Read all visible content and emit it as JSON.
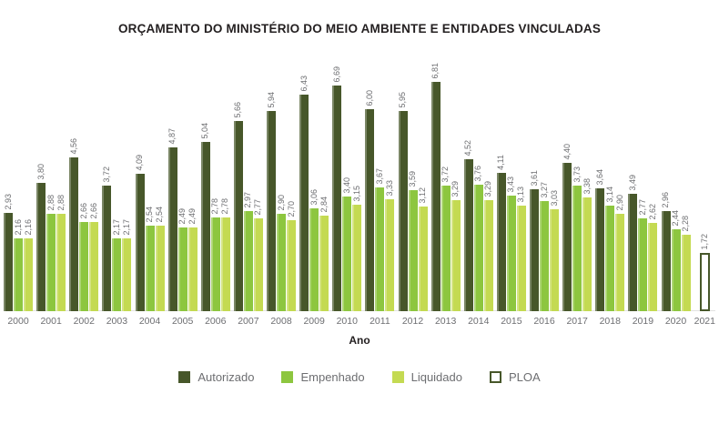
{
  "title": "ORÇAMENTO DO MINISTÉRIO DO MEIO AMBIENTE E ENTIDADES VINCULADAS",
  "chart_data": {
    "type": "bar",
    "title": "ORÇAMENTO DO MINISTÉRIO DO MEIO AMBIENTE E ENTIDADES VINCULADAS",
    "xlabel": "Ano",
    "ylabel": "",
    "ylim": [
      0,
      7
    ],
    "grid": false,
    "legend_position": "bottom",
    "value_label_style": "rotated-vertical, comma-decimal, 2 decimals",
    "categories": [
      "2000",
      "2001",
      "2002",
      "2003",
      "2004",
      "2005",
      "2006",
      "2007",
      "2008",
      "2009",
      "2010",
      "2011",
      "2012",
      "2013",
      "2014",
      "2015",
      "2016",
      "2017",
      "2018",
      "2019",
      "2020",
      "2021"
    ],
    "series": [
      {
        "name": "Autorizado",
        "color": "#47572a",
        "values": [
          2.93,
          3.8,
          4.56,
          3.72,
          4.09,
          4.87,
          5.04,
          5.66,
          5.94,
          6.43,
          6.69,
          6.0,
          5.95,
          6.81,
          4.52,
          4.11,
          3.61,
          4.4,
          3.64,
          3.49,
          2.96,
          null
        ]
      },
      {
        "name": "Empenhado",
        "color": "#8dc63f",
        "values": [
          2.16,
          2.88,
          2.66,
          2.17,
          2.54,
          2.49,
          2.78,
          2.97,
          2.9,
          3.06,
          3.4,
          3.67,
          3.59,
          3.72,
          3.76,
          3.43,
          3.27,
          3.73,
          3.14,
          2.77,
          2.44,
          null
        ]
      },
      {
        "name": "Liquidado",
        "color": "#c4da52",
        "values": [
          2.16,
          2.88,
          2.66,
          2.17,
          2.54,
          2.49,
          2.78,
          2.77,
          2.7,
          2.84,
          3.15,
          3.33,
          3.12,
          3.29,
          3.29,
          3.13,
          3.03,
          3.38,
          2.9,
          2.62,
          2.28,
          null
        ]
      },
      {
        "name": "PLOA",
        "color": "#ffffff",
        "border_color": "#47572a",
        "values": [
          null,
          null,
          null,
          null,
          null,
          null,
          null,
          null,
          null,
          null,
          null,
          null,
          null,
          null,
          null,
          null,
          null,
          null,
          null,
          null,
          null,
          1.72
        ]
      }
    ]
  },
  "legend": {
    "items": [
      {
        "label": "Autorizado"
      },
      {
        "label": "Empenhado"
      },
      {
        "label": "Liquidado"
      },
      {
        "label": "PLOA"
      }
    ]
  },
  "colors": {
    "autorizado": "#47572a",
    "empenhado": "#8dc63f",
    "liquidado": "#c4da52",
    "ploa_fill": "#ffffff",
    "ploa_border": "#47572a",
    "label_gray": "#6d6e71",
    "title_dark": "#231f20",
    "baseline": "#e2e2e0"
  }
}
